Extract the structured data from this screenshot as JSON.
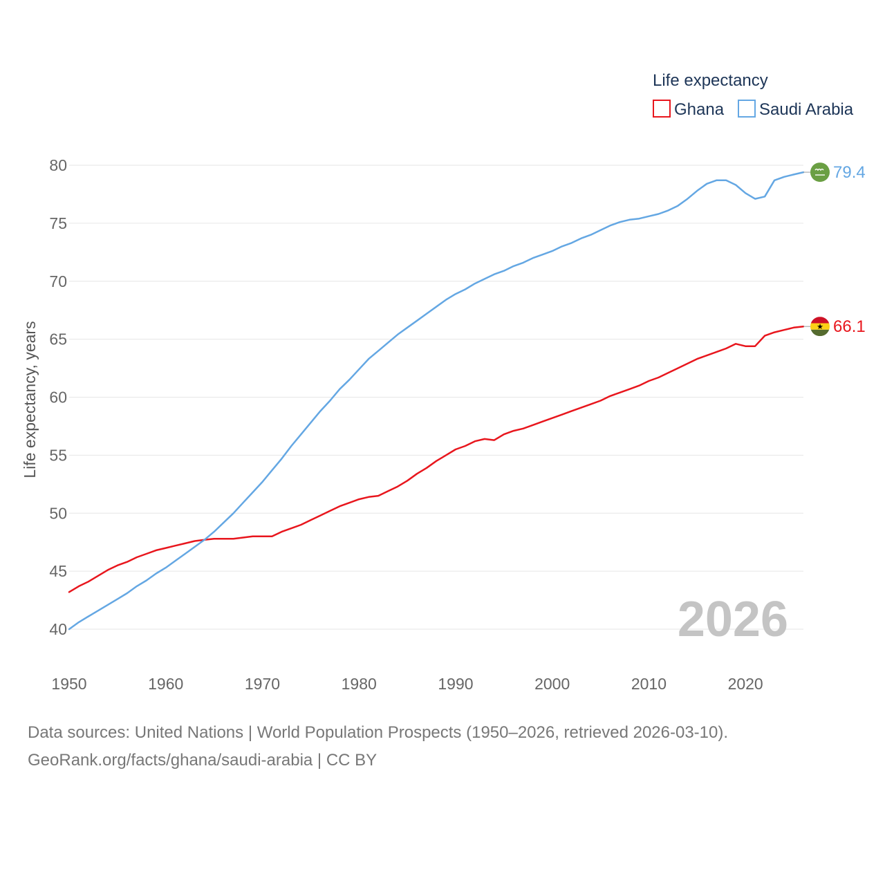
{
  "legend": {
    "title": "Life expectancy",
    "items": [
      {
        "name": "Ghana",
        "color": "#e8161d"
      },
      {
        "name": "Saudi Arabia",
        "color": "#64a7e3"
      }
    ]
  },
  "chart_data": {
    "type": "line",
    "title": "Life expectancy",
    "xlabel": "",
    "ylabel": "Life expectancy, years",
    "xlim": [
      1950,
      2026
    ],
    "ylim": [
      40,
      80
    ],
    "x_ticks": [
      "1950",
      "1960",
      "1970",
      "1980",
      "1990",
      "2000",
      "2010",
      "2020"
    ],
    "y_ticks": [
      "40",
      "45",
      "50",
      "55",
      "60",
      "65",
      "70",
      "75",
      "80"
    ],
    "grid": true,
    "legend_position": "top-right",
    "watermark_year": "2026",
    "x": [
      1950,
      1951,
      1952,
      1953,
      1954,
      1955,
      1956,
      1957,
      1958,
      1959,
      1960,
      1961,
      1962,
      1963,
      1964,
      1965,
      1966,
      1967,
      1968,
      1969,
      1970,
      1971,
      1972,
      1973,
      1974,
      1975,
      1976,
      1977,
      1978,
      1979,
      1980,
      1981,
      1982,
      1983,
      1984,
      1985,
      1986,
      1987,
      1988,
      1989,
      1990,
      1991,
      1992,
      1993,
      1994,
      1995,
      1996,
      1997,
      1998,
      1999,
      2000,
      2001,
      2002,
      2003,
      2004,
      2005,
      2006,
      2007,
      2008,
      2009,
      2010,
      2011,
      2012,
      2013,
      2014,
      2015,
      2016,
      2017,
      2018,
      2019,
      2020,
      2021,
      2022,
      2023,
      2024,
      2025,
      2026
    ],
    "series": [
      {
        "name": "Ghana",
        "color": "#e8161d",
        "end_label": "66.1",
        "flag": "ghana-flag",
        "values": [
          43.2,
          43.7,
          44.1,
          44.6,
          45.1,
          45.5,
          45.8,
          46.2,
          46.5,
          46.8,
          47.0,
          47.2,
          47.4,
          47.6,
          47.7,
          47.8,
          47.8,
          47.8,
          47.9,
          48.0,
          48.0,
          48.0,
          48.4,
          48.7,
          49.0,
          49.4,
          49.8,
          50.2,
          50.6,
          50.9,
          51.2,
          51.4,
          51.5,
          51.9,
          52.3,
          52.8,
          53.4,
          53.9,
          54.5,
          55.0,
          55.5,
          55.8,
          56.2,
          56.4,
          56.3,
          56.8,
          57.1,
          57.3,
          57.6,
          57.9,
          58.2,
          58.5,
          58.8,
          59.1,
          59.4,
          59.7,
          60.1,
          60.4,
          60.7,
          61.0,
          61.4,
          61.7,
          62.1,
          62.5,
          62.9,
          63.3,
          63.6,
          63.9,
          64.2,
          64.6,
          64.4,
          64.4,
          65.3,
          65.6,
          65.8,
          66.0,
          66.1
        ]
      },
      {
        "name": "Saudi Arabia",
        "color": "#64a7e3",
        "end_label": "79.4",
        "flag": "saudi-arabia-flag",
        "values": [
          40.0,
          40.6,
          41.1,
          41.6,
          42.1,
          42.6,
          43.1,
          43.7,
          44.2,
          44.8,
          45.3,
          45.9,
          46.5,
          47.1,
          47.7,
          48.4,
          49.2,
          50.0,
          50.9,
          51.8,
          52.7,
          53.7,
          54.7,
          55.8,
          56.8,
          57.8,
          58.8,
          59.7,
          60.7,
          61.5,
          62.4,
          63.3,
          64.0,
          64.7,
          65.4,
          66.0,
          66.6,
          67.2,
          67.8,
          68.4,
          68.9,
          69.3,
          69.8,
          70.2,
          70.6,
          70.9,
          71.3,
          71.6,
          72.0,
          72.3,
          72.6,
          73.0,
          73.3,
          73.7,
          74.0,
          74.4,
          74.8,
          75.1,
          75.3,
          75.4,
          75.6,
          75.8,
          76.1,
          76.5,
          77.1,
          77.8,
          78.4,
          78.7,
          78.7,
          78.3,
          77.6,
          77.1,
          77.3,
          78.7,
          79.0,
          79.2,
          79.4
        ]
      }
    ]
  },
  "footer": {
    "source": "Data sources: United Nations | World Population Prospects (1950–2026, retrieved 2026-03-10).",
    "credit": "GeoRank.org/facts/ghana/saudi-arabia | CC BY"
  }
}
